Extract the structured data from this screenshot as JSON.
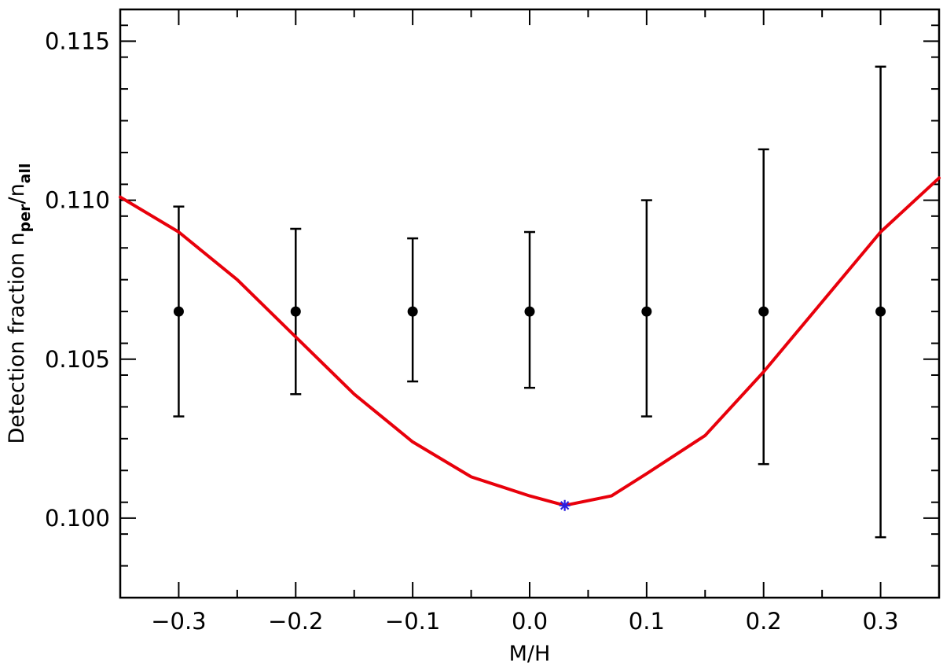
{
  "chart_data": {
    "type": "scatter",
    "xlabel": "M/H",
    "ylabel": {
      "prefix": "Detection fraction n",
      "sub1": "per",
      "slash": "/n",
      "sub2": "all"
    },
    "xlim": [
      -0.35,
      0.35
    ],
    "ylim": [
      0.0975,
      0.116
    ],
    "xticks": [
      -0.3,
      -0.2,
      -0.1,
      0.0,
      0.1,
      0.2,
      0.3
    ],
    "xtick_labels": [
      "−0.3",
      "−0.2",
      "−0.1",
      "0.0",
      "0.1",
      "0.2",
      "0.3"
    ],
    "yticks": [
      0.1,
      0.105,
      0.11,
      0.115
    ],
    "ytick_labels": [
      "0.100",
      "0.105",
      "0.110",
      "0.115"
    ],
    "grid": false,
    "series": [
      {
        "kind": "errorbar",
        "color": "#000000",
        "points": [
          {
            "x": -0.3,
            "y": 0.1065,
            "ylow": 0.1032,
            "yhigh": 0.1098
          },
          {
            "x": -0.2,
            "y": 0.1065,
            "ylow": 0.1039,
            "yhigh": 0.1091
          },
          {
            "x": -0.1,
            "y": 0.1065,
            "ylow": 0.1043,
            "yhigh": 0.1088
          },
          {
            "x": 0.0,
            "y": 0.1065,
            "ylow": 0.1041,
            "yhigh": 0.109
          },
          {
            "x": 0.1,
            "y": 0.1065,
            "ylow": 0.1032,
            "yhigh": 0.11
          },
          {
            "x": 0.2,
            "y": 0.1065,
            "ylow": 0.1017,
            "yhigh": 0.1116
          },
          {
            "x": 0.3,
            "y": 0.1065,
            "ylow": 0.0994,
            "yhigh": 0.1142
          }
        ]
      },
      {
        "kind": "curve",
        "color": "#e8000b",
        "points": [
          [
            -0.35,
            0.1101
          ],
          [
            -0.3,
            0.109
          ],
          [
            -0.25,
            0.1075
          ],
          [
            -0.2,
            0.1057
          ],
          [
            -0.15,
            0.1039
          ],
          [
            -0.1,
            0.1024
          ],
          [
            -0.05,
            0.1013
          ],
          [
            0.0,
            0.1007
          ],
          [
            0.03,
            0.1004
          ],
          [
            0.07,
            0.1007
          ],
          [
            0.1,
            0.1014
          ],
          [
            0.15,
            0.1026
          ],
          [
            0.2,
            0.1046
          ],
          [
            0.25,
            0.1068
          ],
          [
            0.3,
            0.109
          ],
          [
            0.35,
            0.1107
          ]
        ]
      },
      {
        "kind": "marker",
        "marker": "asterisk",
        "color": "#2a1fe0",
        "points": [
          [
            0.03,
            0.1004
          ]
        ]
      }
    ]
  }
}
